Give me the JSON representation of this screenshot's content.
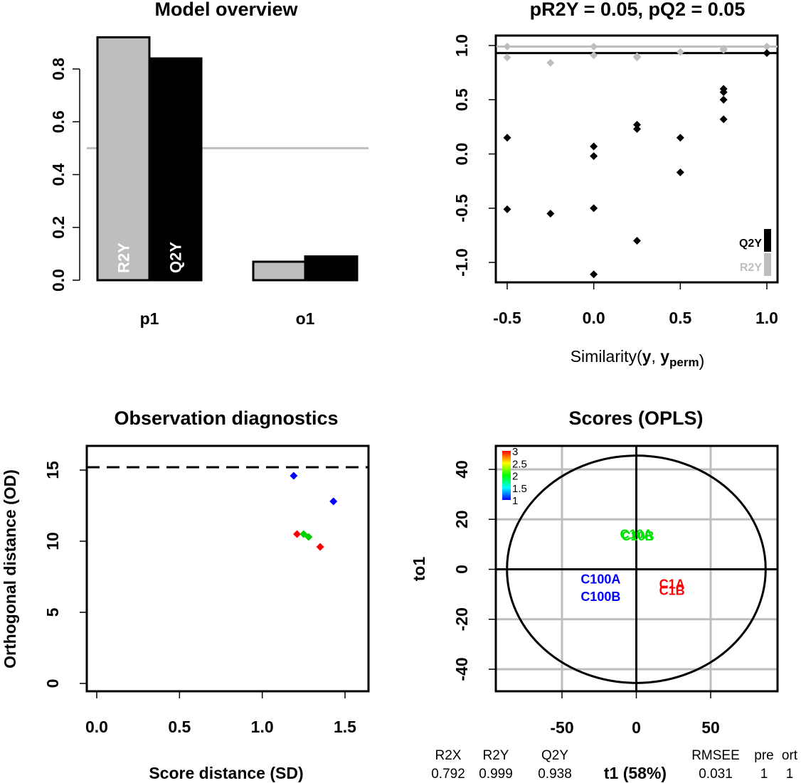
{
  "chart_data": [
    {
      "type": "bar",
      "title": "Model overview",
      "categories": [
        "p1",
        "o1"
      ],
      "series": [
        {
          "name": "R2Y",
          "values": [
            0.92,
            0.07
          ],
          "color": "#bebebe"
        },
        {
          "name": "Q2Y",
          "values": [
            0.84,
            0.09
          ],
          "color": "#000000"
        }
      ],
      "ylim": [
        0,
        0.9
      ],
      "yticks": [
        "0.0",
        "0.2",
        "0.4",
        "0.6",
        "0.8"
      ],
      "reference_line": 0.5,
      "reference_color": "#bebebe"
    },
    {
      "type": "scatter",
      "title": "pR2Y = 0.05, pQ2 = 0.05",
      "xlabel_main": "Similarity(",
      "xlabel_y": "y",
      "xlabel_sep": ", ",
      "xlabel_yp": "y",
      "xlabel_sub": "perm",
      "xlabel_close": ")",
      "xlim": [
        -0.5,
        1.0
      ],
      "ylim": [
        -1.1,
        1.0
      ],
      "xticks": [
        "-0.5",
        "0.0",
        "0.5",
        "1.0"
      ],
      "yticks": [
        "-1.0",
        "-0.5",
        "0.0",
        "0.5",
        "1.0"
      ],
      "series": [
        {
          "name": "R2Y",
          "color": "#bebebe",
          "x": [
            -0.5,
            -0.5,
            -0.25,
            0.0,
            0.0,
            0.25,
            0.25,
            0.5,
            0.75,
            0.75,
            1.0
          ],
          "y": [
            0.99,
            0.89,
            0.84,
            0.99,
            0.91,
            0.9,
            0.89,
            0.94,
            0.97,
            0.96,
            0.99
          ],
          "reference": 0.99
        },
        {
          "name": "Q2Y",
          "color": "#000000",
          "x": [
            -0.5,
            -0.5,
            -0.25,
            0.0,
            0.0,
            0.0,
            0.0,
            0.25,
            0.25,
            0.25,
            0.5,
            0.5,
            0.75,
            0.75,
            0.75,
            0.75,
            1.0
          ],
          "y": [
            0.15,
            -0.51,
            -0.55,
            0.07,
            -0.02,
            -0.5,
            -1.11,
            0.27,
            0.23,
            -0.8,
            0.15,
            -0.17,
            0.6,
            0.57,
            0.5,
            0.32,
            0.93
          ],
          "reference": 0.93
        }
      ],
      "legend": [
        "Q2Y",
        "R2Y"
      ],
      "legend_position": "bottom-right"
    },
    {
      "type": "scatter",
      "title": "Observation diagnostics",
      "xlabel": "Score distance (SD)",
      "ylabel": "Orthogonal distance (OD)",
      "xlim": [
        0.0,
        1.5
      ],
      "ylim": [
        0,
        15
      ],
      "xticks": [
        "0.0",
        "0.5",
        "1.0",
        "1.5"
      ],
      "yticks": [
        "0",
        "5",
        "10",
        "15"
      ],
      "threshold_y": 15.2,
      "points": [
        {
          "x": 1.19,
          "y": 14.6,
          "color": "#0000ff"
        },
        {
          "x": 1.43,
          "y": 12.8,
          "color": "#0000ff"
        },
        {
          "x": 1.21,
          "y": 10.5,
          "color": "#ff0000"
        },
        {
          "x": 1.35,
          "y": 9.6,
          "color": "#ff0000"
        },
        {
          "x": 1.25,
          "y": 10.5,
          "color": "#00d000"
        },
        {
          "x": 1.28,
          "y": 10.3,
          "color": "#00d000"
        }
      ]
    },
    {
      "type": "scatter",
      "title": "Scores (OPLS)",
      "xlabel": "t1 (58%)",
      "ylabel": "to1",
      "xlim": [
        -50,
        50
      ],
      "ylim": [
        -40,
        40
      ],
      "xticks": [
        "-50",
        "0",
        "50"
      ],
      "yticks": [
        "-40",
        "-20",
        "0",
        "20",
        "40"
      ],
      "ellipse": {
        "a": 87,
        "b": 45.5
      },
      "labels": [
        {
          "text": "C10A",
          "x": 0,
          "y": 14,
          "color": "#00e000"
        },
        {
          "text": "C10B",
          "x": 1,
          "y": 13.3,
          "color": "#00e000"
        },
        {
          "text": "C100A",
          "x": -24,
          "y": -4,
          "color": "#0000ff"
        },
        {
          "text": "C100B",
          "x": -24,
          "y": -11,
          "color": "#0000ff"
        },
        {
          "text": "C1A",
          "x": 24,
          "y": -6,
          "color": "#ff0000"
        },
        {
          "text": "C1B",
          "x": 24,
          "y": -8.5,
          "color": "#ff0000"
        }
      ],
      "colorbar": {
        "labels": [
          "3",
          "2.5",
          "2",
          "1.5",
          "1"
        ],
        "colors": [
          "#ff0000",
          "#ffff00",
          "#00ff00",
          "#00ffff",
          "#0000ff"
        ]
      }
    }
  ],
  "summary": {
    "headers": [
      "R2X",
      "R2Y",
      "Q2Y",
      "RMSEE",
      "pre",
      "ort"
    ],
    "values": [
      "0.792",
      "0.999",
      "0.938",
      "0.031",
      "1",
      "1"
    ]
  }
}
